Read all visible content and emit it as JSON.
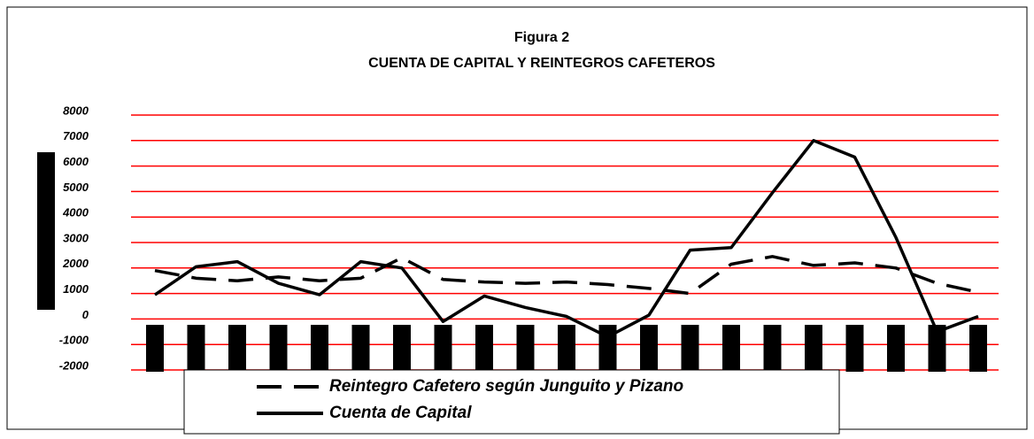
{
  "chart_data": {
    "type": "line",
    "title": "Figura 2",
    "subtitle": "CUENTA  DE CAPITAL Y REINTEGROS CAFETEROS",
    "categories": [
      null,
      null,
      null,
      null,
      null,
      null,
      null,
      null,
      null,
      null,
      null,
      null,
      null,
      null,
      null,
      null,
      null,
      null,
      null,
      null,
      null
    ],
    "series": [
      {
        "name": "Reintegro Cafetero según Junguito y Pizano",
        "color": "#000000",
        "dash": true,
        "values": [
          1900,
          1600,
          1500,
          1650,
          1500,
          1600,
          2400,
          1550,
          1450,
          1400,
          1450,
          1350,
          1200,
          1000,
          2150,
          2450,
          2100,
          2200,
          2000,
          1400,
          1050
        ]
      },
      {
        "name": "Cuenta de Capital",
        "color": "#000000",
        "dash": false,
        "values": [
          950,
          2050,
          2250,
          1400,
          950,
          2250,
          2000,
          -100,
          900,
          450,
          100,
          -700,
          150,
          2700,
          2800,
          4950,
          7000,
          6350,
          3200,
          -500,
          100
        ]
      }
    ],
    "ylim": [
      -2000,
      8000
    ],
    "yticks": [
      -2000,
      -1000,
      0,
      1000,
      2000,
      3000,
      4000,
      5000,
      6000,
      7000,
      8000
    ],
    "grid": true,
    "grid_color": "#ff0000"
  }
}
